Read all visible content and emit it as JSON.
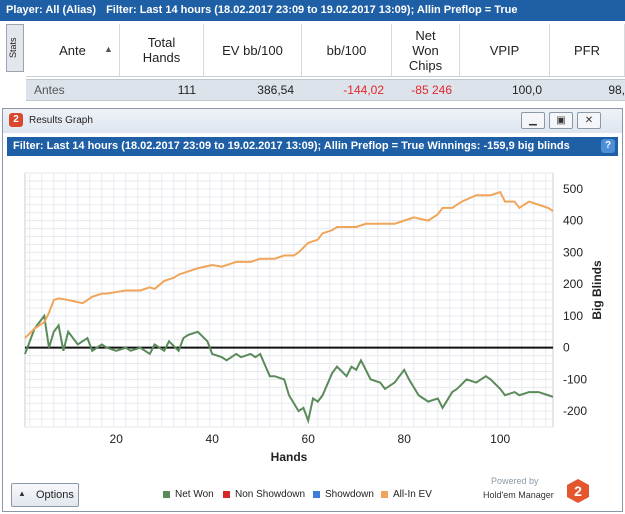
{
  "topbar": {
    "player": "Player: All (Alias)",
    "filter": "Filter: Last 14 hours (18.02.2017 23:09 to 19.02.2017 13:09); Allin Preflop = True"
  },
  "stats_tab": "Stats",
  "columns": [
    "Ante",
    "Total Hands",
    "EV bb/100",
    "bb/100",
    "Net Won Chips",
    "VPIP",
    "PFR"
  ],
  "row": [
    "Antes",
    "111",
    "386,54",
    "-144,02",
    "-85 246",
    "100,0",
    "98,"
  ],
  "window": {
    "title": "Results Graph",
    "filter": "Filter: Last 14 hours (18.02.2017 23:09 to 19.02.2017 13:09); Allin Preflop = True Winnings: -159,9 big blinds"
  },
  "options_label": "Options",
  "powered_by": "Powered by",
  "brand": "Hold'em Manager",
  "brand_logo": "2",
  "chart_data": {
    "type": "line",
    "xlabel": "Hands",
    "ylabel": "Big Blinds",
    "xlim": [
      1,
      111
    ],
    "ylim": [
      -250,
      550
    ],
    "xticks": [
      20,
      40,
      60,
      80,
      100
    ],
    "yticks": [
      500,
      400,
      300,
      200,
      100,
      0,
      -100,
      -200
    ],
    "grid": true,
    "legend_position": "bottom",
    "series": [
      {
        "name": "Net Won",
        "color": "#5b8a5b",
        "x": [
          1,
          3,
          5,
          6,
          7,
          8,
          9,
          10,
          12,
          14,
          15,
          17,
          18,
          20,
          22,
          23,
          25,
          27,
          28,
          30,
          31,
          33,
          34,
          35,
          37,
          39,
          40,
          42,
          43,
          45,
          46,
          48,
          49,
          50,
          52,
          53,
          55,
          56,
          58,
          59,
          60,
          61,
          62,
          63,
          65,
          66,
          68,
          69,
          70,
          71,
          73,
          75,
          76,
          78,
          79,
          80,
          81,
          83,
          85,
          87,
          88,
          90,
          91,
          93,
          95,
          97,
          98,
          100,
          101,
          103,
          104,
          106,
          108,
          110,
          111
        ],
        "values": [
          -20,
          60,
          100,
          0,
          50,
          70,
          -10,
          50,
          10,
          30,
          -10,
          10,
          0,
          -10,
          0,
          -10,
          0,
          -20,
          10,
          -10,
          20,
          -10,
          30,
          40,
          50,
          20,
          -20,
          -30,
          -40,
          -20,
          -30,
          -20,
          -30,
          -20,
          -90,
          -90,
          -100,
          -150,
          -200,
          -190,
          -230,
          -160,
          -170,
          -150,
          -80,
          -60,
          -90,
          -60,
          -70,
          -40,
          -100,
          -110,
          -130,
          -110,
          -90,
          -70,
          -100,
          -150,
          -170,
          -160,
          -190,
          -140,
          -130,
          -100,
          -110,
          -90,
          -100,
          -130,
          -150,
          -140,
          -150,
          -140,
          -140,
          -150,
          -155
        ]
      },
      {
        "name": "Non Showdown",
        "color": "#d62728",
        "x": [],
        "values": []
      },
      {
        "name": "Showdown",
        "color": "#3b7dd8",
        "x": [],
        "values": []
      },
      {
        "name": "All-In EV",
        "color": "#f0a55a",
        "x": [
          1,
          3,
          5,
          6,
          7,
          8,
          10,
          13,
          15,
          17,
          18,
          20,
          22,
          25,
          27,
          28,
          30,
          32,
          33,
          35,
          37,
          40,
          42,
          45,
          48,
          50,
          51,
          53,
          55,
          57,
          58,
          60,
          62,
          63,
          65,
          66,
          68,
          70,
          72,
          75,
          78,
          80,
          82,
          85,
          87,
          88,
          90,
          92,
          95,
          97,
          98,
          100,
          101,
          103,
          104,
          106,
          108,
          110,
          111
        ],
        "values": [
          30,
          60,
          80,
          110,
          150,
          155,
          150,
          140,
          160,
          170,
          170,
          175,
          180,
          180,
          190,
          185,
          210,
          220,
          230,
          240,
          250,
          260,
          255,
          270,
          270,
          280,
          280,
          280,
          290,
          290,
          300,
          330,
          340,
          360,
          370,
          380,
          380,
          380,
          390,
          390,
          390,
          400,
          410,
          400,
          420,
          440,
          440,
          460,
          480,
          480,
          480,
          490,
          460,
          460,
          440,
          460,
          450,
          440,
          430
        ]
      }
    ]
  }
}
